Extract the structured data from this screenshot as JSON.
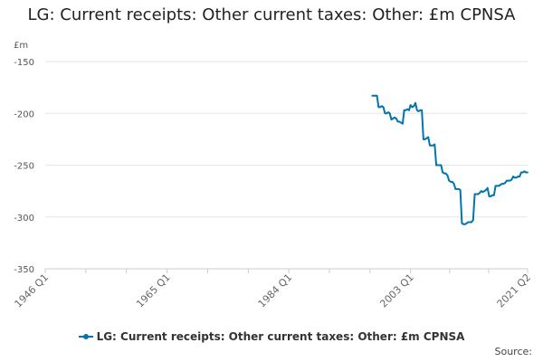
{
  "title": "LG: Current receipts: Other current taxes: Other: £m CPNSA",
  "unit_label": "£m",
  "source_label": "Source:",
  "colors": {
    "series": "#0075b0",
    "grid": "#e6e6e6",
    "axis": "#cccccc"
  },
  "chart_data": {
    "type": "line",
    "title": "LG: Current receipts: Other current taxes: Other: £m CPNSA",
    "ylabel": "£m",
    "ylim": [
      -350,
      -150
    ],
    "yticks": [
      -150,
      -200,
      -250,
      -300,
      -350
    ],
    "xlim": [
      1946.0,
      2021.25
    ],
    "x_tick_labels": [
      "1946 Q1",
      "1965 Q1",
      "1984 Q1",
      "2003 Q1",
      "2021 Q2"
    ],
    "x_tick_values": [
      1946.0,
      1965.0,
      1984.0,
      2003.0,
      2021.25
    ],
    "grid": true,
    "legend_position": "bottom",
    "series": [
      {
        "name": "LG: Current receipts: Other current taxes: Other: £m CPNSA",
        "x": [
          1997.0,
          1997.25,
          1997.5,
          1997.75,
          1998.0,
          1998.25,
          1998.5,
          1998.75,
          1999.0,
          1999.25,
          1999.5,
          1999.75,
          2000.0,
          2000.25,
          2000.5,
          2000.75,
          2001.0,
          2001.25,
          2001.5,
          2001.75,
          2002.0,
          2002.25,
          2002.5,
          2002.75,
          2003.0,
          2003.25,
          2003.5,
          2003.75,
          2004.0,
          2004.25,
          2004.5,
          2004.75,
          2005.0,
          2005.25,
          2005.5,
          2005.75,
          2006.0,
          2006.25,
          2006.5,
          2006.75,
          2007.0,
          2007.25,
          2007.5,
          2007.75,
          2008.0,
          2008.25,
          2008.5,
          2008.75,
          2009.0,
          2009.25,
          2009.5,
          2009.75,
          2010.0,
          2010.25,
          2010.5,
          2010.75,
          2011.0,
          2011.25,
          2011.5,
          2011.75,
          2012.0,
          2012.25,
          2012.5,
          2012.75,
          2013.0,
          2013.25,
          2013.5,
          2013.75,
          2014.0,
          2014.25,
          2014.5,
          2014.75,
          2015.0,
          2015.25,
          2015.5,
          2015.75,
          2016.0,
          2016.25,
          2016.5,
          2016.75,
          2017.0,
          2017.25,
          2017.5,
          2017.75,
          2018.0,
          2018.25,
          2018.5,
          2018.75,
          2019.0,
          2019.25,
          2019.5,
          2019.75,
          2020.0,
          2020.25,
          2020.5,
          2020.75,
          2021.0,
          2021.25
        ],
        "values": [
          -183,
          -183,
          -183,
          -183,
          -194,
          -194,
          -193,
          -194,
          -200,
          -200,
          -199,
          -200,
          -206,
          -205,
          -204,
          -205,
          -208,
          -208,
          -209,
          -210,
          -197,
          -197,
          -196,
          -197,
          -192,
          -194,
          -193,
          -190,
          -197,
          -198,
          -197,
          -197,
          -225,
          -225,
          -224,
          -223,
          -231,
          -231,
          -231,
          -230,
          -250,
          -250,
          -250,
          -250,
          -257,
          -258,
          -258,
          -260,
          -265,
          -266,
          -266,
          -268,
          -273,
          -273,
          -273,
          -274,
          -306,
          -307,
          -307,
          -306,
          -305,
          -305,
          -305,
          -303,
          -278,
          -278,
          -278,
          -277,
          -275,
          -276,
          -275,
          -274,
          -272,
          -280,
          -280,
          -279,
          -279,
          -270,
          -270,
          -270,
          -269,
          -268,
          -268,
          -267,
          -265,
          -265,
          -265,
          -264,
          -261,
          -262,
          -262,
          -261,
          -261,
          -257,
          -257,
          -256,
          -257,
          -257
        ]
      }
    ]
  }
}
